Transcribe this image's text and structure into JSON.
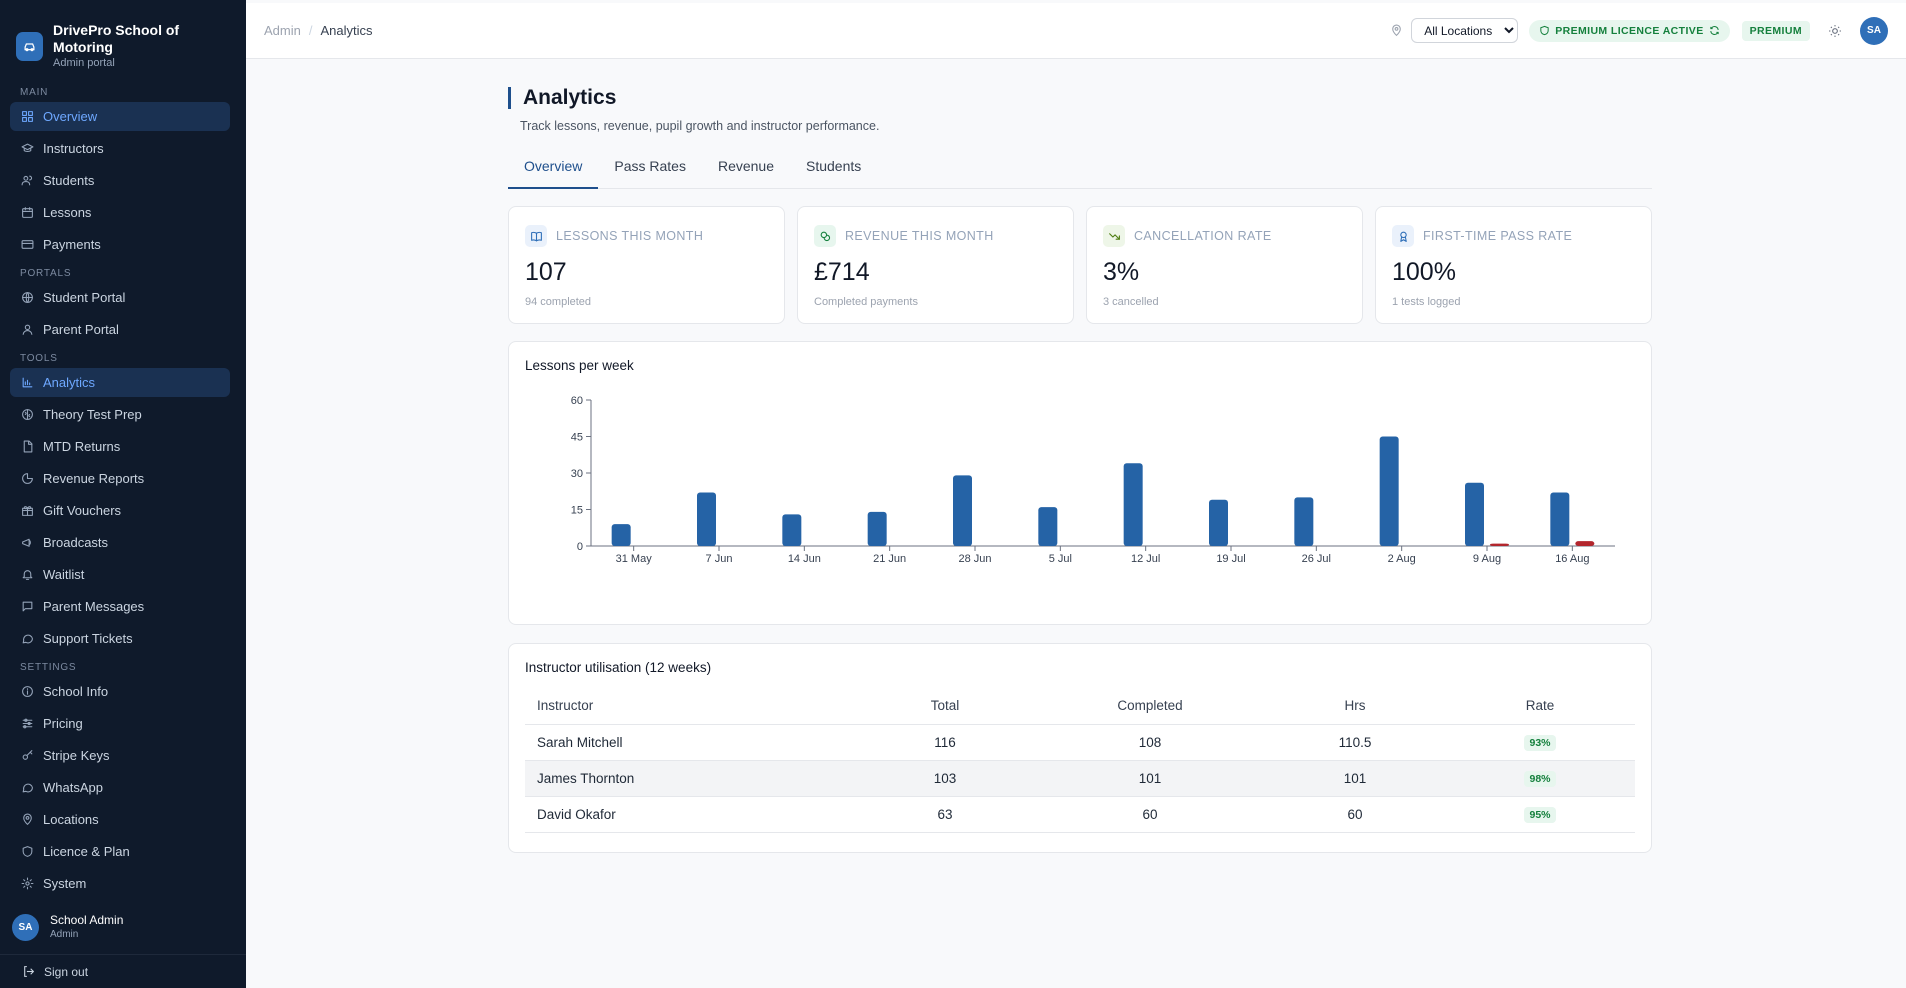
{
  "brand": {
    "title": "DrivePro School of Motoring",
    "subtitle": "Admin portal",
    "icon": "car-icon"
  },
  "sidebar": {
    "sections": [
      {
        "label": "MAIN",
        "items": [
          {
            "label": "Overview",
            "icon": "grid-icon",
            "active": true
          },
          {
            "label": "Instructors",
            "icon": "graduation-cap-icon"
          },
          {
            "label": "Students",
            "icon": "users-icon"
          },
          {
            "label": "Lessons",
            "icon": "calendar-icon"
          },
          {
            "label": "Payments",
            "icon": "credit-card-icon"
          }
        ]
      },
      {
        "label": "PORTALS",
        "items": [
          {
            "label": "Student Portal",
            "icon": "globe-icon"
          },
          {
            "label": "Parent Portal",
            "icon": "user-icon"
          }
        ]
      },
      {
        "label": "TOOLS",
        "items": [
          {
            "label": "Analytics",
            "icon": "bar-chart-icon",
            "active": true
          },
          {
            "label": "Theory Test Prep",
            "icon": "brain-icon"
          },
          {
            "label": "MTD Returns",
            "icon": "file-icon"
          },
          {
            "label": "Revenue Reports",
            "icon": "pie-chart-icon"
          },
          {
            "label": "Gift Vouchers",
            "icon": "gift-icon"
          },
          {
            "label": "Broadcasts",
            "icon": "megaphone-icon"
          },
          {
            "label": "Waitlist",
            "icon": "bell-icon"
          },
          {
            "label": "Parent Messages",
            "icon": "message-icon"
          },
          {
            "label": "Support Tickets",
            "icon": "message-circle-icon"
          }
        ]
      },
      {
        "label": "SETTINGS",
        "items": [
          {
            "label": "School Info",
            "icon": "info-icon"
          },
          {
            "label": "Pricing",
            "icon": "sliders-icon"
          },
          {
            "label": "Stripe Keys",
            "icon": "key-icon"
          },
          {
            "label": "WhatsApp",
            "icon": "message-circle-icon"
          },
          {
            "label": "Locations",
            "icon": "map-pin-icon"
          },
          {
            "label": "Licence & Plan",
            "icon": "shield-icon"
          },
          {
            "label": "System",
            "icon": "settings-icon"
          }
        ]
      }
    ],
    "user": {
      "initials": "SA",
      "name": "School Admin",
      "role": "Admin"
    },
    "signout": "Sign out"
  },
  "topbar": {
    "breadcrumb_root": "Admin",
    "breadcrumb_current": "Analytics",
    "location_select": "All Locations",
    "licence_badge": "PREMIUM LICENCE ACTIVE",
    "plan_badge": "PREMIUM",
    "avatar_initials": "SA",
    "accent": "#1e4f8c"
  },
  "page": {
    "title": "Analytics",
    "subtitle": "Track lessons, revenue, pupil growth and instructor performance.",
    "tabs": [
      {
        "label": "Overview",
        "active": true
      },
      {
        "label": "Pass Rates"
      },
      {
        "label": "Revenue"
      },
      {
        "label": "Students"
      }
    ]
  },
  "stats": [
    {
      "label": "Lessons this month",
      "value": "107",
      "note": "94 completed",
      "icon": "book-icon",
      "bg": "#eaf1fb",
      "fg": "#2f6fb8"
    },
    {
      "label": "Revenue this month",
      "value": "£714",
      "note": "Completed payments",
      "icon": "coins-icon",
      "bg": "#e7f6ee",
      "fg": "#15803d"
    },
    {
      "label": "Cancellation rate",
      "value": "3%",
      "note": "3 cancelled",
      "icon": "trending-down-icon",
      "bg": "#eef6e8",
      "fg": "#4d7c0f"
    },
    {
      "label": "First-time pass rate",
      "value": "100%",
      "note": "1 tests logged",
      "icon": "award-icon",
      "bg": "#eaf1fb",
      "fg": "#2f6fb8"
    }
  ],
  "chart_title": "Lessons per week",
  "chart_data": {
    "type": "bar",
    "title": "Lessons per week",
    "categories": [
      "31 May",
      "7 Jun",
      "14 Jun",
      "21 Jun",
      "28 Jun",
      "5 Jul",
      "12 Jul",
      "19 Jul",
      "26 Jul",
      "2 Aug",
      "9 Aug",
      "16 Aug"
    ],
    "series": [
      {
        "values": [
          9,
          22,
          13,
          14,
          29,
          16,
          34,
          19,
          20,
          45,
          26,
          22
        ],
        "color": "#2563a6"
      },
      {
        "values": [
          0,
          0,
          0,
          0,
          0,
          0,
          0,
          0,
          0,
          0,
          1,
          2
        ],
        "color": "#b3262d"
      }
    ],
    "yticks": [
      0,
      15,
      30,
      45,
      60
    ],
    "ylim": [
      0,
      60
    ],
    "grid": false
  },
  "table": {
    "title": "Instructor utilisation (12 weeks)",
    "columns": [
      "Instructor",
      "Total",
      "Completed",
      "Hrs",
      "Rate"
    ],
    "rows": [
      {
        "name": "Sarah Mitchell",
        "total": "116",
        "completed": "108",
        "hrs": "110.5",
        "rate": "93%"
      },
      {
        "name": "James Thornton",
        "total": "103",
        "completed": "101",
        "hrs": "101",
        "rate": "98%"
      },
      {
        "name": "David Okafor",
        "total": "63",
        "completed": "60",
        "hrs": "60",
        "rate": "95%"
      }
    ]
  }
}
